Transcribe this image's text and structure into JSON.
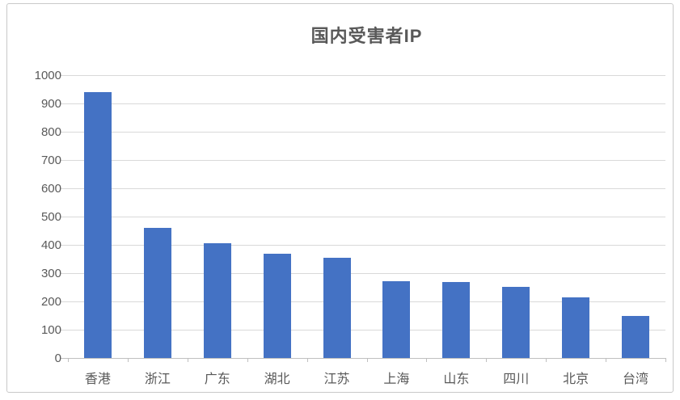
{
  "chart_data": {
    "type": "bar",
    "title": "国内受害者IP",
    "categories": [
      "香港",
      "浙江",
      "广东",
      "湖北",
      "江苏",
      "上海",
      "山东",
      "四川",
      "北京",
      "台湾"
    ],
    "values": [
      940,
      460,
      405,
      370,
      355,
      272,
      268,
      252,
      215,
      150
    ],
    "xlabel": "",
    "ylabel": "",
    "ylim": [
      0,
      1000
    ],
    "yticks": [
      0,
      100,
      200,
      300,
      400,
      500,
      600,
      700,
      800,
      900,
      1000
    ],
    "grid": "horizontal",
    "legend": "none",
    "colors": {
      "bar": "#4472c4",
      "gridline": "#d9d9d9",
      "axis_line": "#bfbfbf",
      "text": "#595959",
      "frame_border": "#c9c9c9",
      "background": "#ffffff"
    }
  }
}
